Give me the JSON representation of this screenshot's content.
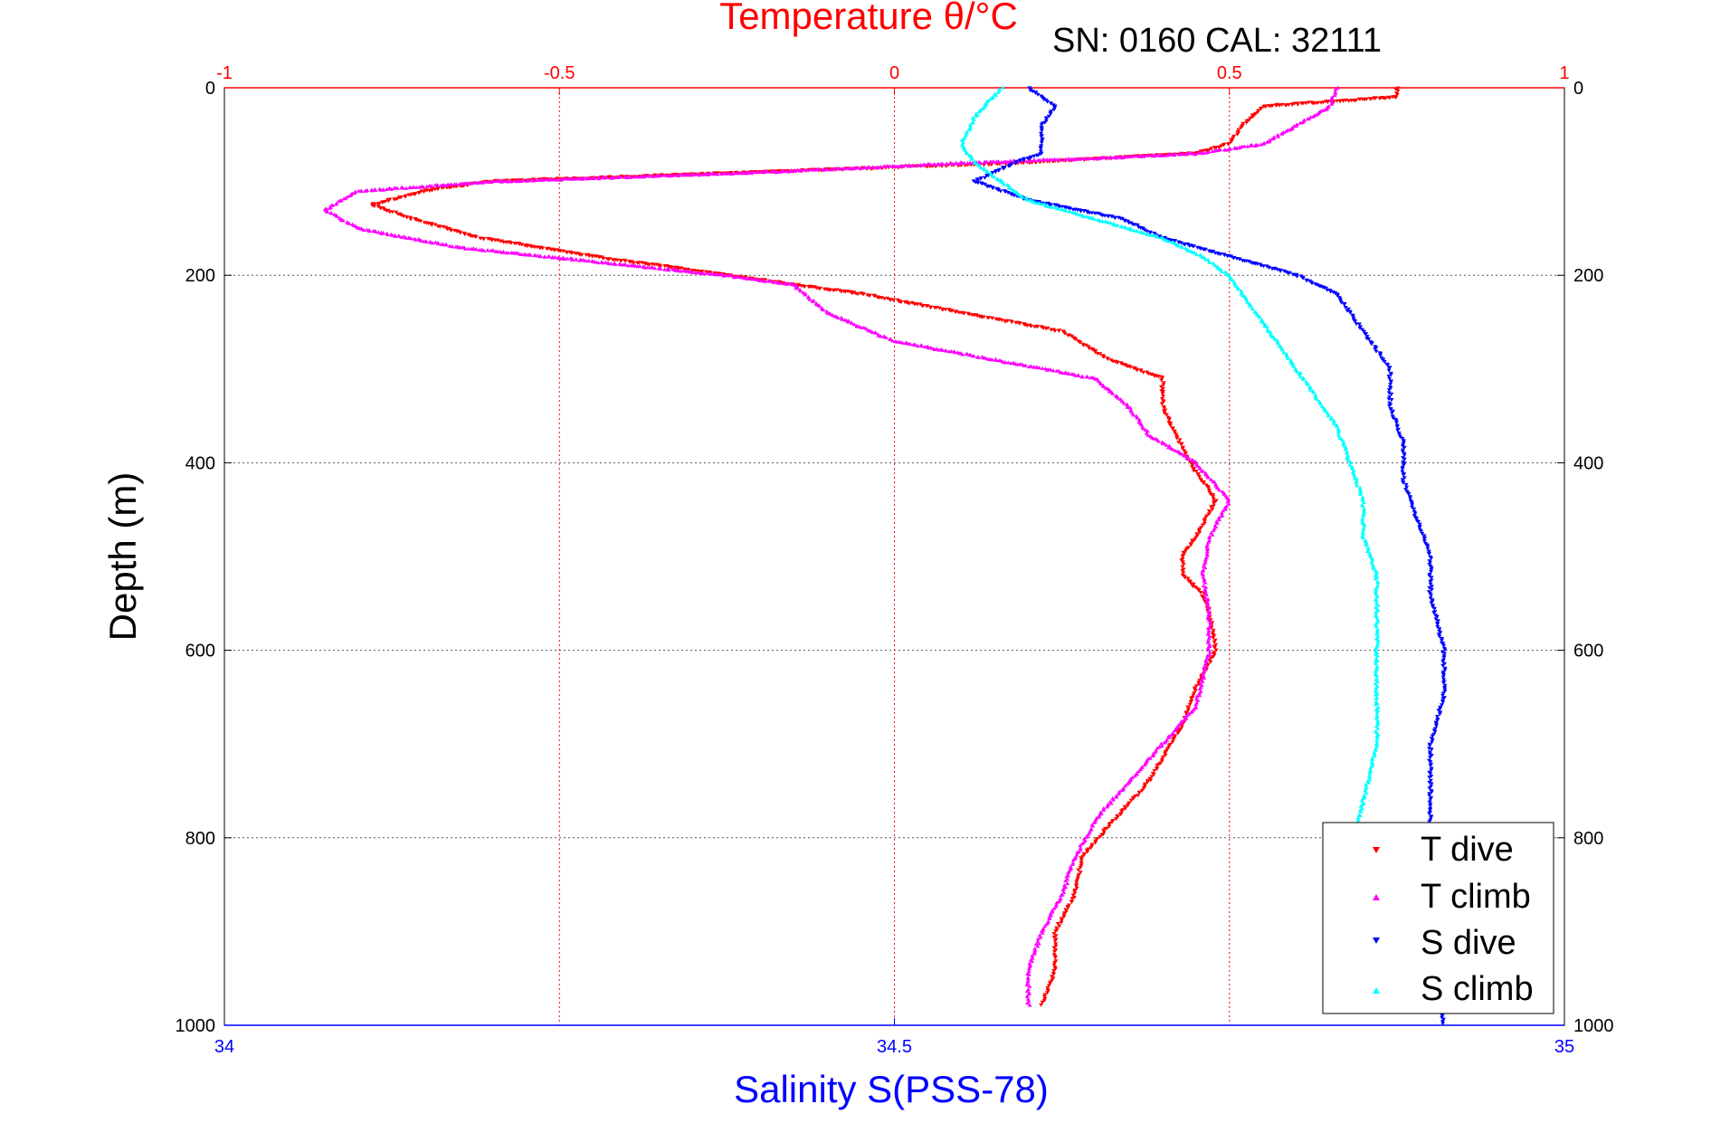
{
  "chart_data": {
    "type": "scatter",
    "title": "Temperature θ/°C",
    "annotation": "SN: 0160  CAL: 32111",
    "xlabel_bottom": "Salinity S(PSS-78)",
    "xlabel_top": "Temperature θ/°C",
    "ylabel": "Depth (m)",
    "y_reversed": true,
    "ylim": [
      0,
      1000
    ],
    "x_bottom_lim": [
      34,
      35
    ],
    "x_top_lim": [
      -1,
      1
    ],
    "y_ticks": [
      "0",
      "200",
      "400",
      "600",
      "800",
      "1000"
    ],
    "x_bottom_ticks": [
      "34",
      "34.5",
      "35"
    ],
    "x_top_ticks": [
      "-1",
      "-0.5",
      "0",
      "0.5",
      "1"
    ],
    "grid": "on",
    "legend_position": "bottom-right",
    "colors": {
      "t_dive": "#ff0000",
      "t_climb": "#ff00ff",
      "s_dive": "#0000ff",
      "s_climb": "#00ffff",
      "top_axis": "#ff0000",
      "bottom_axis": "#0000ff"
    },
    "series": [
      {
        "name": "T dive",
        "axis": "top",
        "marker": "triangle-down",
        "color": "#ff0000",
        "points": [
          [
            0.75,
            0
          ],
          [
            0.75,
            10
          ],
          [
            0.55,
            20
          ],
          [
            0.52,
            40
          ],
          [
            0.5,
            60
          ],
          [
            0.45,
            70
          ],
          [
            0.2,
            80
          ],
          [
            -0.2,
            90
          ],
          [
            -0.6,
            100
          ],
          [
            -0.7,
            110
          ],
          [
            -0.78,
            125
          ],
          [
            -0.72,
            140
          ],
          [
            -0.62,
            160
          ],
          [
            -0.45,
            180
          ],
          [
            -0.25,
            200
          ],
          [
            -0.05,
            220
          ],
          [
            0.1,
            240
          ],
          [
            0.25,
            260
          ],
          [
            0.32,
            290
          ],
          [
            0.4,
            310
          ],
          [
            0.4,
            340
          ],
          [
            0.42,
            370
          ],
          [
            0.45,
            410
          ],
          [
            0.48,
            440
          ],
          [
            0.45,
            480
          ],
          [
            0.43,
            500
          ],
          [
            0.43,
            520
          ],
          [
            0.46,
            540
          ],
          [
            0.47,
            560
          ],
          [
            0.48,
            600
          ],
          [
            0.45,
            640
          ],
          [
            0.43,
            680
          ],
          [
            0.38,
            740
          ],
          [
            0.33,
            780
          ],
          [
            0.28,
            820
          ],
          [
            0.27,
            860
          ],
          [
            0.24,
            900
          ],
          [
            0.24,
            920
          ],
          [
            0.24,
            940
          ],
          [
            0.22,
            980
          ]
        ]
      },
      {
        "name": "T climb",
        "axis": "top",
        "marker": "triangle-up",
        "color": "#ff00ff",
        "points": [
          [
            0.66,
            0
          ],
          [
            0.65,
            20
          ],
          [
            0.6,
            40
          ],
          [
            0.55,
            60
          ],
          [
            0.45,
            70
          ],
          [
            0.3,
            75
          ],
          [
            0.1,
            80
          ],
          [
            -0.2,
            90
          ],
          [
            -0.6,
            100
          ],
          [
            -0.8,
            110
          ],
          [
            -0.85,
            130
          ],
          [
            -0.8,
            150
          ],
          [
            -0.65,
            170
          ],
          [
            -0.45,
            185
          ],
          [
            -0.25,
            200
          ],
          [
            -0.15,
            210
          ],
          [
            -0.1,
            240
          ],
          [
            0,
            270
          ],
          [
            0.15,
            290
          ],
          [
            0.3,
            310
          ],
          [
            0.35,
            340
          ],
          [
            0.38,
            370
          ],
          [
            0.45,
            400
          ],
          [
            0.5,
            440
          ],
          [
            0.47,
            480
          ],
          [
            0.46,
            520
          ],
          [
            0.47,
            560
          ],
          [
            0.47,
            600
          ],
          [
            0.45,
            660
          ],
          [
            0.4,
            700
          ],
          [
            0.35,
            740
          ],
          [
            0.3,
            780
          ],
          [
            0.27,
            820
          ],
          [
            0.25,
            860
          ],
          [
            0.22,
            900
          ],
          [
            0.2,
            940
          ],
          [
            0.2,
            980
          ]
        ]
      },
      {
        "name": "S dive",
        "axis": "bottom",
        "marker": "triangle-down",
        "color": "#0000ff",
        "points": [
          [
            34.6,
            0
          ],
          [
            34.62,
            20
          ],
          [
            34.61,
            40
          ],
          [
            34.61,
            70
          ],
          [
            34.59,
            80
          ],
          [
            34.56,
            100
          ],
          [
            34.58,
            110
          ],
          [
            34.6,
            120
          ],
          [
            34.67,
            140
          ],
          [
            34.7,
            160
          ],
          [
            34.75,
            180
          ],
          [
            34.8,
            200
          ],
          [
            34.83,
            220
          ],
          [
            34.85,
            260
          ],
          [
            34.87,
            300
          ],
          [
            34.87,
            340
          ],
          [
            34.88,
            380
          ],
          [
            34.88,
            420
          ],
          [
            34.89,
            460
          ],
          [
            34.9,
            500
          ],
          [
            34.9,
            540
          ],
          [
            34.91,
            600
          ],
          [
            34.91,
            650
          ],
          [
            34.9,
            700
          ],
          [
            34.9,
            760
          ],
          [
            34.9,
            820
          ],
          [
            34.9,
            880
          ],
          [
            34.9,
            940
          ],
          [
            34.91,
            1000
          ]
        ]
      },
      {
        "name": "S climb",
        "axis": "bottom",
        "marker": "triangle-up",
        "color": "#00ffff",
        "points": [
          [
            34.58,
            0
          ],
          [
            34.56,
            30
          ],
          [
            34.55,
            60
          ],
          [
            34.56,
            80
          ],
          [
            34.58,
            100
          ],
          [
            34.6,
            120
          ],
          [
            34.65,
            140
          ],
          [
            34.7,
            160
          ],
          [
            34.73,
            180
          ],
          [
            34.75,
            200
          ],
          [
            34.77,
            240
          ],
          [
            34.79,
            280
          ],
          [
            34.81,
            320
          ],
          [
            34.83,
            360
          ],
          [
            34.84,
            400
          ],
          [
            34.85,
            440
          ],
          [
            34.85,
            480
          ],
          [
            34.86,
            520
          ],
          [
            34.86,
            560
          ],
          [
            34.86,
            600
          ],
          [
            34.86,
            650
          ],
          [
            34.86,
            700
          ],
          [
            34.85,
            760
          ],
          [
            34.84,
            820
          ],
          [
            34.85,
            880
          ],
          [
            34.86,
            940
          ]
        ]
      }
    ],
    "legend": [
      "T dive",
      "T climb",
      "S dive",
      "S climb"
    ]
  }
}
